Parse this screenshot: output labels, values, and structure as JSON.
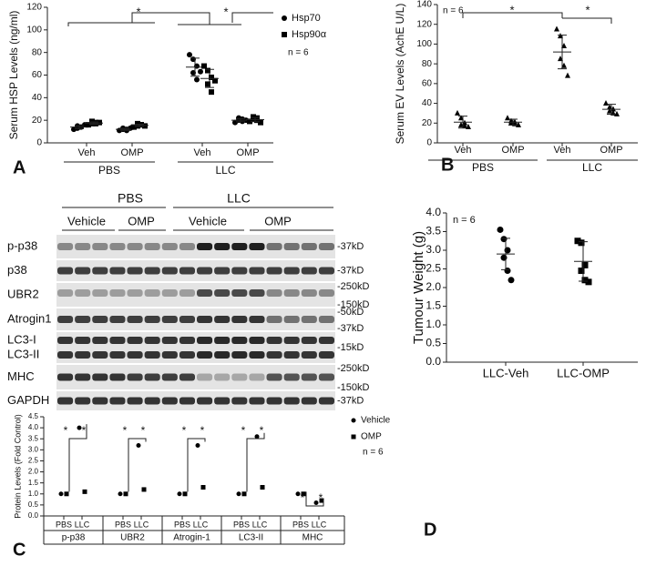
{
  "chart_data": [
    {
      "type": "dot",
      "panel": "A",
      "y_label": "Serum HSP Levels (ng/ml)",
      "categories": [
        "Veh",
        "OMP",
        "Veh",
        "OMP"
      ],
      "groups": [
        "PBS",
        "LLC"
      ],
      "ylim": [
        0,
        120
      ],
      "yticks": [
        0,
        20,
        40,
        60,
        80,
        100,
        120
      ],
      "series": [
        {
          "name": "Hsp70",
          "marker": "circle",
          "color": "#000000",
          "values": [
            14,
            12,
            67,
            20
          ],
          "errors": [
            1.4,
            0.9,
            8,
            1.4
          ],
          "points": [
            [
              12,
              13,
              14,
              15,
              14,
              16
            ],
            [
              11,
              12,
              12,
              13,
              11,
              13
            ],
            [
              78,
              74,
              68,
              62,
              56,
              63
            ],
            [
              18,
              20,
              21,
              22,
              19,
              20
            ]
          ]
        },
        {
          "name": "Hsp90α",
          "marker": "square",
          "color": "#000000",
          "values": [
            17.5,
            15.5,
            57,
            20.5
          ],
          "errors": [
            1,
            1,
            8,
            1.8
          ],
          "points": [
            [
              16,
              17,
              18,
              19,
              17,
              18
            ],
            [
              14,
              15,
              16,
              17,
              16,
              15
            ],
            [
              68,
              64,
              58,
              52,
              45,
              55
            ],
            [
              19,
              21,
              22,
              23,
              20,
              18
            ]
          ]
        }
      ],
      "annotations": [
        "*",
        "*"
      ],
      "note": "n = 6"
    },
    {
      "type": "dot",
      "panel": "B",
      "y_label": "Serum EV Levels (AchE U/L)",
      "categories": [
        "Veh",
        "OMP",
        "Veh",
        "OMP"
      ],
      "groups": [
        "PBS",
        "LLC"
      ],
      "ylim": [
        0,
        140
      ],
      "yticks": [
        0,
        20,
        40,
        60,
        80,
        100,
        120,
        140
      ],
      "series": [
        {
          "marker": "triangle",
          "color": "#000000",
          "values": [
            21,
            21,
            92,
            34
          ],
          "errors": [
            6,
            3,
            17,
            5
          ],
          "points": [
            [
              30,
              25,
              20,
              18,
              17,
              16
            ],
            [
              25,
              22,
              21,
              20,
              19,
              18
            ],
            [
              115,
              108,
              98,
              85,
              78,
              68
            ],
            [
              40,
              36,
              34,
              32,
              30,
              29
            ]
          ]
        }
      ],
      "annotations": [
        "*",
        "*"
      ],
      "note": "n = 6"
    },
    {
      "type": "dot",
      "panel": "C",
      "y_label": "Protein Levels (Fold Control)",
      "categories": [
        "PBS",
        "LLC",
        "PBS",
        "LLC",
        "PBS",
        "LLC",
        "PBS",
        "LLC",
        "PBS",
        "LLC"
      ],
      "groups": [
        "p-p38",
        "UBR2",
        "Atrogin-1",
        "LC3-II",
        "MHC"
      ],
      "ylim": [
        0,
        4.5
      ],
      "yticks": [
        {
          "value": 0,
          "label": "0.0"
        },
        {
          "value": 0.5,
          "label": "0.5"
        },
        {
          "value": 1,
          "label": "1.0"
        },
        {
          "value": 1.5,
          "label": "1.5"
        },
        {
          "value": 2,
          "label": "2.0"
        },
        {
          "value": 2.5,
          "label": "2.5"
        },
        {
          "value": 3,
          "label": "3.0"
        },
        {
          "value": 3.5,
          "label": "3.5"
        },
        {
          "value": 4,
          "label": "4.0"
        },
        {
          "value": 4.5,
          "label": "4.5"
        }
      ],
      "series": [
        {
          "name": "Vehicle",
          "marker": "circle",
          "color": "#000000",
          "values": [
            1.0,
            4.0,
            1.0,
            3.2,
            1.0,
            3.2,
            1.0,
            3.6,
            1.0,
            0.6
          ]
        },
        {
          "name": "OMP",
          "marker": "square",
          "color": "#000000",
          "values": [
            1.0,
            1.1,
            1.0,
            1.2,
            1.0,
            1.3,
            1.0,
            1.3,
            1.0,
            0.7
          ]
        }
      ],
      "annotations": [
        "*",
        "*",
        "*",
        "*",
        "*",
        "*",
        "*",
        "*",
        "*",
        "*"
      ],
      "note": "n = 6"
    },
    {
      "type": "dot",
      "panel": "D",
      "y_label": "Tumour Weight (g)",
      "categories": [
        "LLC-Veh",
        "LLC-OMP"
      ],
      "ylim": [
        0,
        4
      ],
      "yticks": [
        {
          "value": 0,
          "label": "0.0"
        },
        {
          "value": 0.5,
          "label": "0.5"
        },
        {
          "value": 1,
          "label": "1.0"
        },
        {
          "value": 1.5,
          "label": "1.5"
        },
        {
          "value": 2,
          "label": "2.0"
        },
        {
          "value": 2.5,
          "label": "2.5"
        },
        {
          "value": 3,
          "label": "3.0"
        },
        {
          "value": 3.5,
          "label": "3.5"
        },
        {
          "value": 4,
          "label": "4.0"
        }
      ],
      "series": [
        {
          "marker": "mixed",
          "color": "#000000",
          "values": [
            2.9,
            2.7
          ],
          "errors": [
            0.42,
            0.53
          ],
          "points": [
            [
              3.55,
              3.3,
              3.0,
              2.8,
              2.45,
              2.2
            ],
            [
              3.25,
              3.2,
              2.6,
              2.45,
              2.2,
              2.15
            ]
          ]
        }
      ],
      "note": "n = 6"
    }
  ],
  "blot": {
    "conditions": [
      "PBS",
      "LLC"
    ],
    "treatments": [
      "Vehicle",
      "OMP",
      "Vehicle",
      "OMP"
    ],
    "rows": [
      {
        "labels": [
          "p-p38"
        ],
        "markers": [
          "-37kD"
        ]
      },
      {
        "labels": [
          "p38"
        ],
        "markers": [
          "-37kD"
        ]
      },
      {
        "labels": [
          "UBR2"
        ],
        "markers": [
          "-250kD",
          "-150kD"
        ]
      },
      {
        "labels": [
          "Atrogin1"
        ],
        "markers": [
          "-50kD",
          "-37kD"
        ]
      },
      {
        "labels": [
          "LC3-I",
          "LC3-II"
        ],
        "markers": [
          "-15kD"
        ]
      },
      {
        "labels": [
          "MHC"
        ],
        "markers": [
          "-250kD",
          "-150kD"
        ]
      },
      {
        "labels": [
          "GAPDH"
        ],
        "markers": [
          "-37kD"
        ]
      }
    ]
  }
}
